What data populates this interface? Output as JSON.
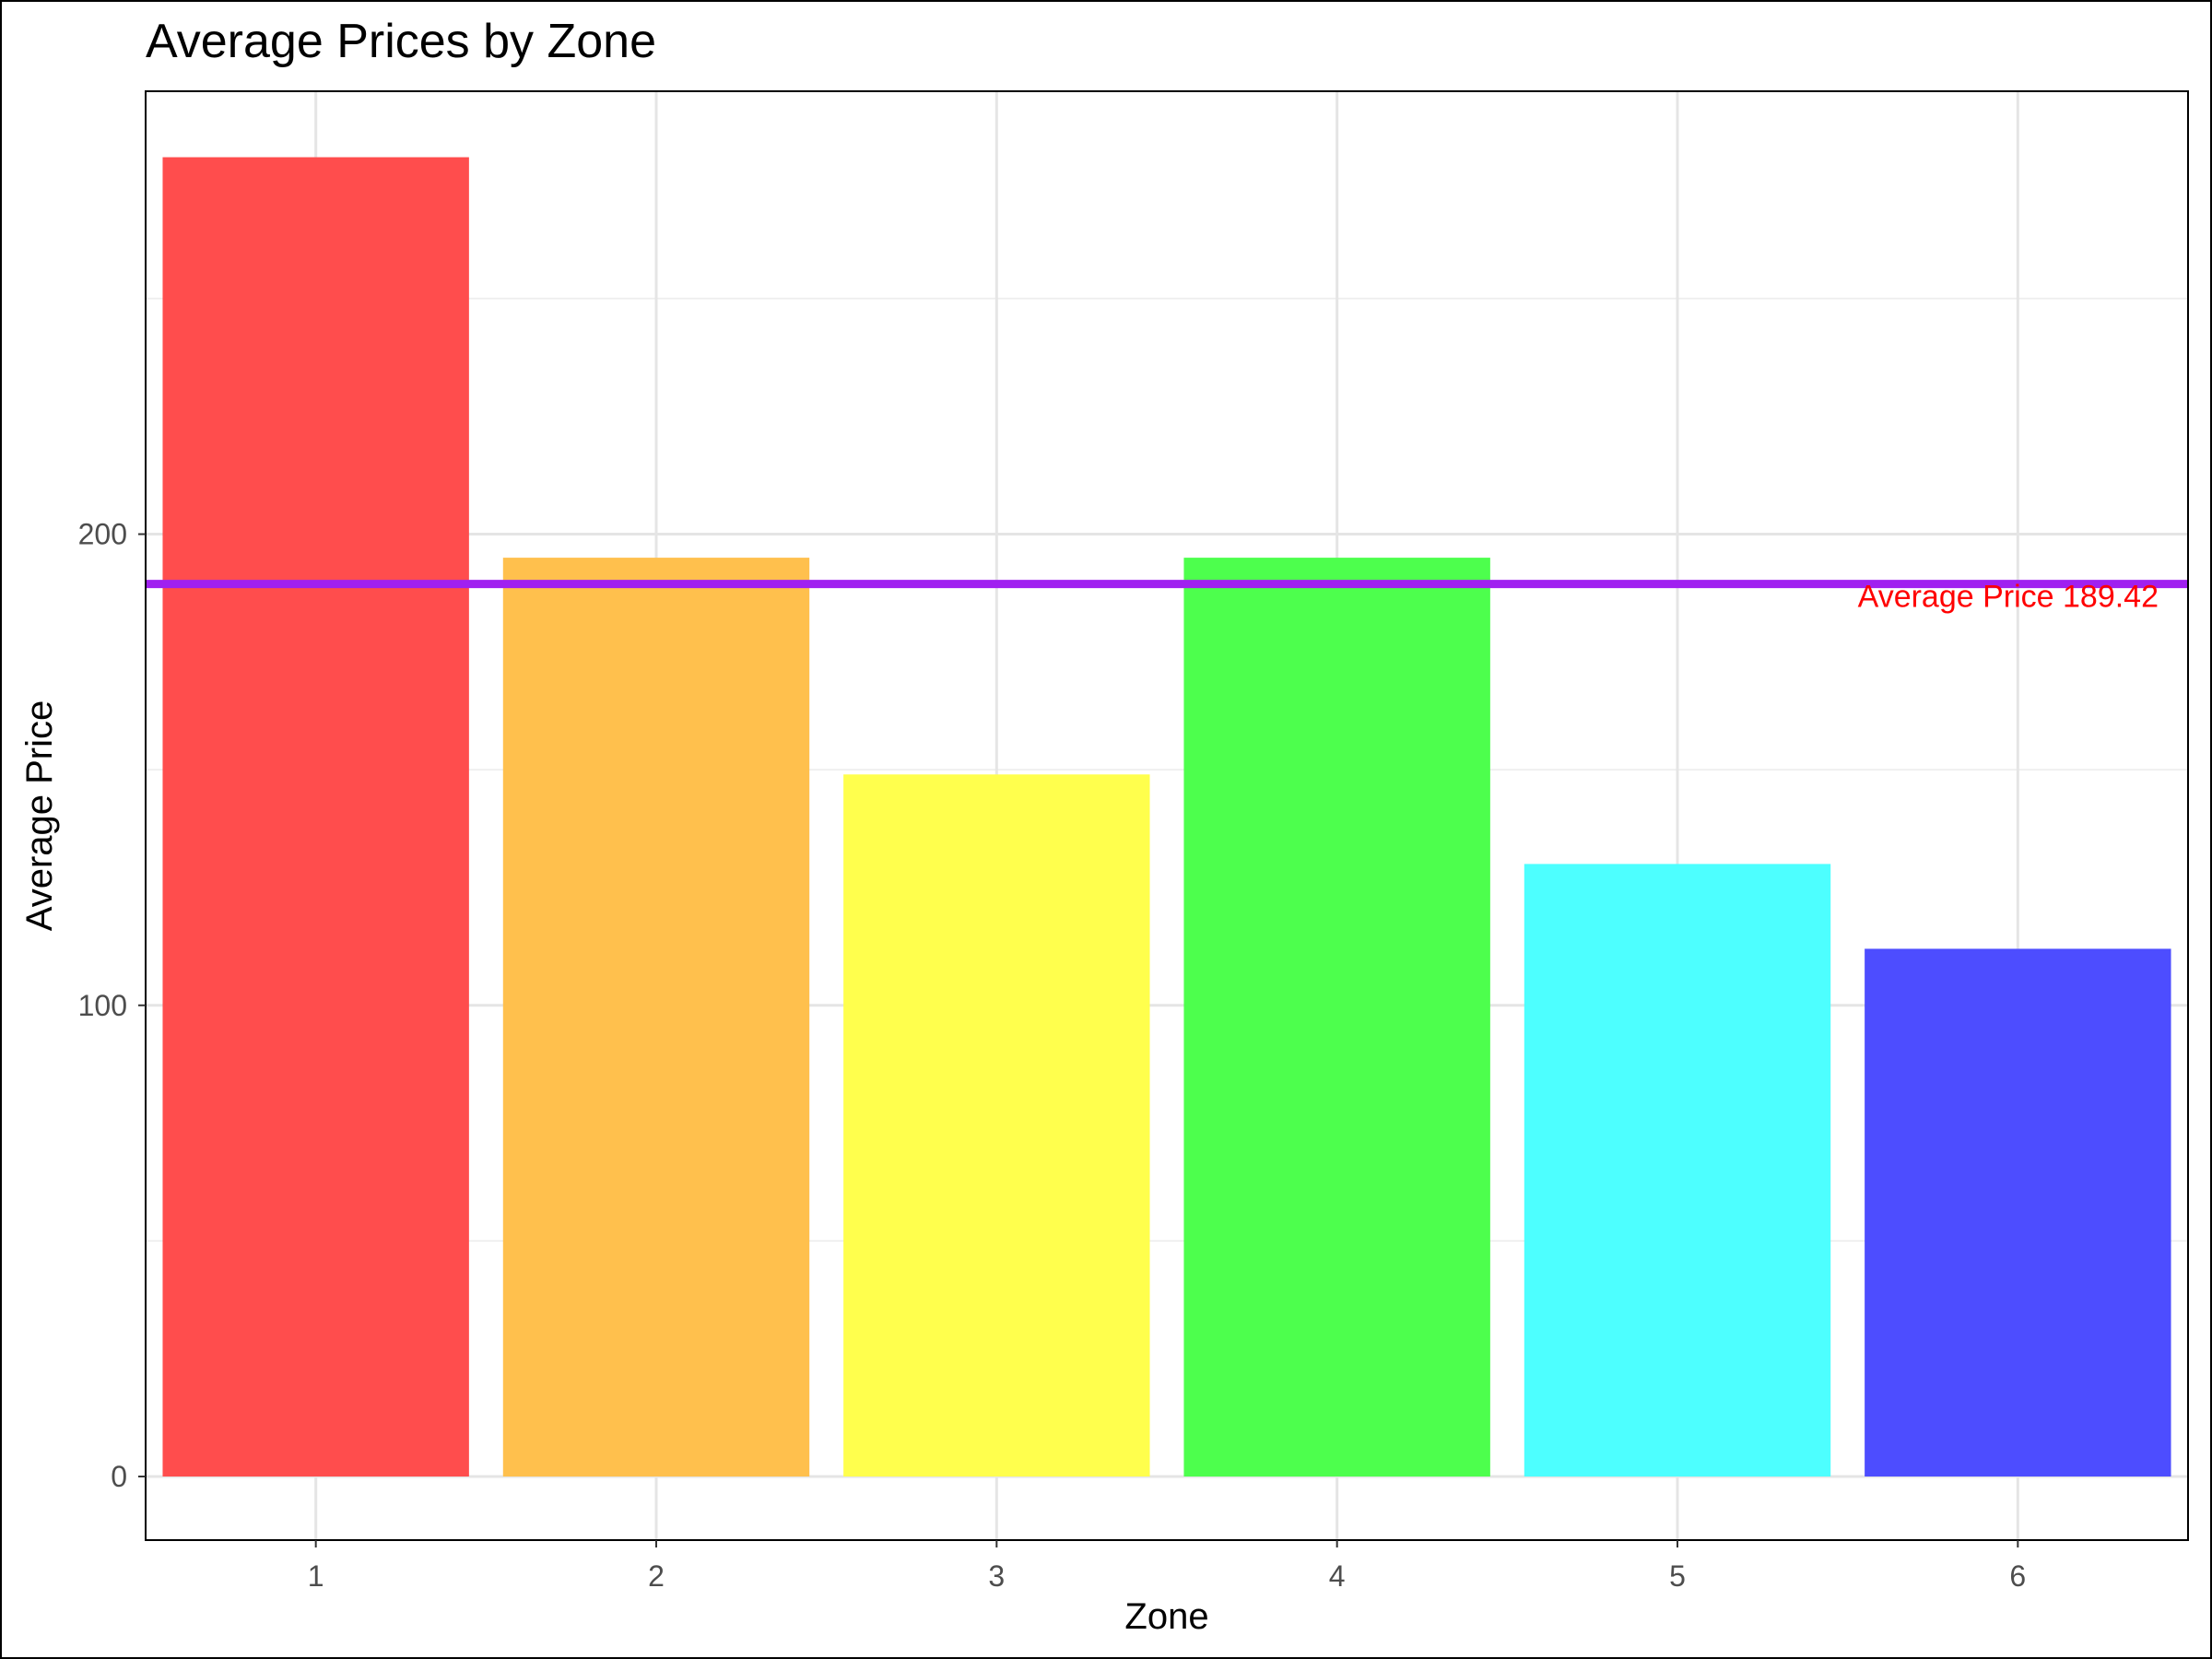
{
  "chart_data": {
    "type": "bar",
    "title": "Average Prices by Zone",
    "xlabel": "Zone",
    "ylabel": "Average Price",
    "categories": [
      "1",
      "2",
      "3",
      "4",
      "5",
      "6"
    ],
    "values": [
      280,
      195,
      149,
      195,
      130,
      112
    ],
    "colors": [
      "#FF4D4D",
      "#FFC04D",
      "#FFFF4D",
      "#4DFF4D",
      "#4DFFFF",
      "#4D4DFF"
    ],
    "ylim": [
      -13.5,
      294
    ],
    "yticks": [
      0,
      100,
      200
    ],
    "yticks_minor": [
      50,
      150,
      250
    ],
    "grid": true,
    "reference_line": {
      "value": 189.42,
      "label": "Average Price 189.42",
      "line_color": "#A020F0",
      "label_color": "#FF0000"
    }
  }
}
